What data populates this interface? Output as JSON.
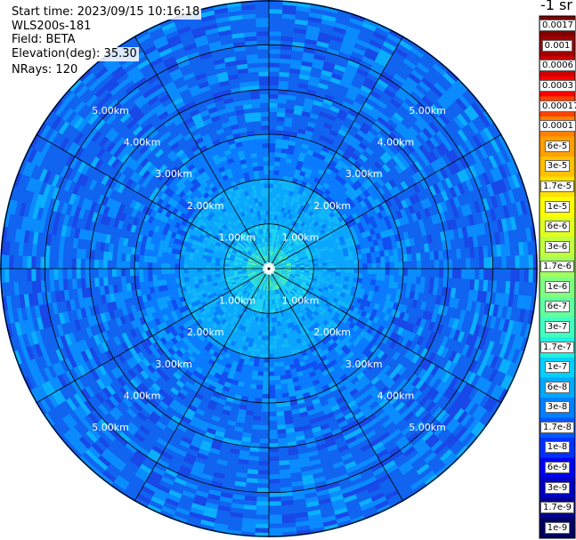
{
  "header": {
    "start_time": "Start time: 2023/09/15 10:16:18",
    "device": "WLS200s-181",
    "field": "Field: BETA",
    "elevation": "Elevation(deg): 35.30",
    "nrays": "NRays: 120"
  },
  "colorbar": {
    "unit_label": "-1 sr",
    "labels": [
      "0.0017",
      "0.001",
      "0.0006",
      "0.0003",
      "0.00017",
      "0.0001",
      "6e-5",
      "3e-5",
      "1.7e-5",
      "1e-5",
      "6e-6",
      "3e-6",
      "1.7e-6",
      "1e-6",
      "6e-7",
      "3e-7",
      "1.7e-7",
      "1e-7",
      "6e-8",
      "3e-8",
      "1.7e-8",
      "1e-8",
      "6e-9",
      "3e-9",
      "1.7e-9",
      "1e-9"
    ],
    "colors": [
      "#800000",
      "#a00000",
      "#cc0000",
      "#ff0000",
      "#ff4000",
      "#ff8000",
      "#ffa000",
      "#ffc000",
      "#ffe000",
      "#ffff00",
      "#e0ff20",
      "#c0ff40",
      "#a0ff60",
      "#80ff80",
      "#60ffa0",
      "#40ffc0",
      "#20f0e0",
      "#00d0ff",
      "#00a8ff",
      "#0080ff",
      "#0058ff",
      "#0030ff",
      "#0000f0",
      "#0000c0",
      "#000090",
      "#000060"
    ],
    "text_white": [
      "0.0017",
      "0.001",
      "0.0006",
      "0.0003",
      "1.7e-8",
      "1e-8",
      "6e-9",
      "3e-9",
      "1.7e-9",
      "1e-9"
    ]
  },
  "chart_data": {
    "type": "heatmap",
    "projection": "polar-ppi",
    "field": "BETA",
    "elevation_deg": 35.3,
    "nrays": 120,
    "range_rings_km": [
      1,
      2,
      3,
      4,
      5
    ],
    "ring_labels": [
      "1.00km",
      "2.00km",
      "3.00km",
      "4.00km",
      "5.00km"
    ],
    "max_range_km": 6.0,
    "spoke_step_deg": 30,
    "typical_values": {
      "near_center_0_1km": "1.7e-7 to 1e-6",
      "1_to_2km": "1e-7 to 1.7e-7",
      "beyond_2km": "6e-9 to 6e-8"
    }
  }
}
